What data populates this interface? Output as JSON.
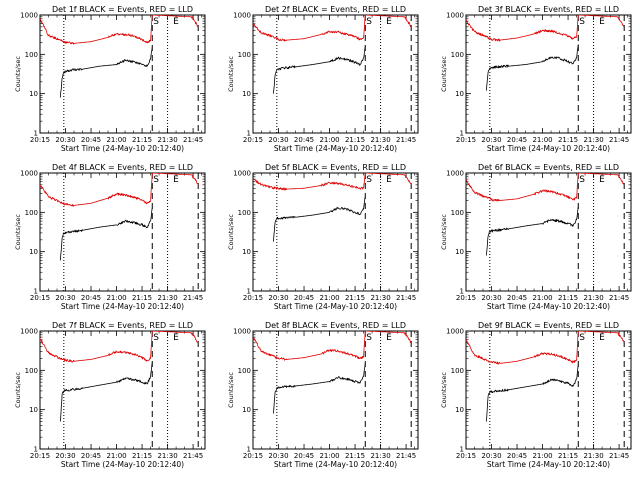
{
  "chart_data": [
    {
      "type": "line",
      "title": "Det 1f BLACK = Events, RED = LLD",
      "xlabel": "Start Time (24-May-10 20:12:40)",
      "ylabel": "Counts/sec",
      "yscale": "log",
      "ylim": [
        1,
        1000
      ],
      "xlim": [
        "20:15",
        "21:52"
      ],
      "x_ticks": [
        "20:15",
        "20:30",
        "20:45",
        "21:00",
        "21:15",
        "21:30",
        "21:45"
      ],
      "y_ticks": [
        "1",
        "10",
        "100",
        "1000"
      ],
      "markers": {
        "S": "21:21",
        "E": "21:35"
      },
      "dotted_lines": [
        "20:29",
        "21:30"
      ],
      "dashed_lines": [
        "21:21",
        "21:48"
      ],
      "series": [
        {
          "name": "BLACK",
          "color": "#000000",
          "x": [
            "20:27",
            "20:28",
            "20:29",
            "20:33",
            "20:40",
            "20:50",
            "21:00",
            "21:05",
            "21:10",
            "21:15",
            "21:18",
            "21:20",
            "21:21"
          ],
          "y": [
            8,
            25,
            35,
            40,
            42,
            50,
            55,
            70,
            65,
            55,
            50,
            75,
            150
          ]
        },
        {
          "name": "RED",
          "color": "#e00000",
          "x": [
            "20:15",
            "20:20",
            "20:27",
            "20:30",
            "20:35",
            "20:45",
            "20:55",
            "21:00",
            "21:05",
            "21:10",
            "21:15",
            "21:18",
            "21:20",
            "21:21",
            "21:44",
            "21:46",
            "21:48"
          ],
          "y": [
            800,
            300,
            230,
            200,
            190,
            210,
            270,
            330,
            320,
            290,
            240,
            200,
            220,
            1000,
            900,
            700,
            500
          ]
        }
      ]
    },
    {
      "type": "line",
      "title": "Det 2f BLACK = Events, RED = LLD",
      "xlabel": "Start Time (24-May-10 20:12:40)",
      "ylabel": "Counts/sec",
      "yscale": "log",
      "ylim": [
        1,
        1000
      ],
      "xlim": [
        "20:15",
        "21:52"
      ],
      "x_ticks": [
        "20:15",
        "20:30",
        "20:45",
        "21:00",
        "21:15",
        "21:30",
        "21:45"
      ],
      "y_ticks": [
        "1",
        "10",
        "100",
        "1000"
      ],
      "markers": {
        "S": "21:21",
        "E": "21:35"
      },
      "dotted_lines": [
        "20:29",
        "21:30"
      ],
      "dashed_lines": [
        "21:21",
        "21:48"
      ],
      "series": [
        {
          "name": "BLACK",
          "color": "#000000",
          "x": [
            "20:27",
            "20:28",
            "20:29",
            "20:33",
            "20:40",
            "20:50",
            "21:00",
            "21:05",
            "21:10",
            "21:15",
            "21:18",
            "21:20",
            "21:21"
          ],
          "y": [
            10,
            30,
            40,
            45,
            48,
            55,
            65,
            80,
            75,
            62,
            55,
            80,
            160
          ]
        },
        {
          "name": "RED",
          "color": "#e00000",
          "x": [
            "20:15",
            "20:20",
            "20:27",
            "20:30",
            "20:35",
            "20:45",
            "20:55",
            "21:00",
            "21:05",
            "21:10",
            "21:15",
            "21:18",
            "21:20",
            "21:21",
            "21:44",
            "21:46",
            "21:48"
          ],
          "y": [
            600,
            350,
            280,
            240,
            230,
            250,
            320,
            380,
            370,
            330,
            280,
            240,
            260,
            1000,
            900,
            700,
            500
          ]
        }
      ]
    },
    {
      "type": "line",
      "title": "Det 3f BLACK = Events, RED = LLD",
      "xlabel": "Start Time (24-May-10 20:12:40)",
      "ylabel": "Counts/sec",
      "yscale": "log",
      "ylim": [
        1,
        1000
      ],
      "xlim": [
        "20:15",
        "21:52"
      ],
      "x_ticks": [
        "20:15",
        "20:30",
        "20:45",
        "21:00",
        "21:15",
        "21:30",
        "21:45"
      ],
      "y_ticks": [
        "1",
        "10",
        "100",
        "1000"
      ],
      "markers": {
        "S": "21:21",
        "E": "21:35"
      },
      "dotted_lines": [
        "20:29",
        "21:30"
      ],
      "dashed_lines": [
        "21:21",
        "21:48"
      ],
      "series": [
        {
          "name": "BLACK",
          "color": "#000000",
          "x": [
            "20:27",
            "20:28",
            "20:29",
            "20:33",
            "20:40",
            "20:50",
            "21:00",
            "21:05",
            "21:10",
            "21:15",
            "21:18",
            "21:20",
            "21:21"
          ],
          "y": [
            12,
            35,
            45,
            48,
            50,
            55,
            65,
            85,
            80,
            65,
            58,
            80,
            180
          ]
        },
        {
          "name": "RED",
          "color": "#e00000",
          "x": [
            "20:15",
            "20:20",
            "20:27",
            "20:30",
            "20:35",
            "20:45",
            "20:55",
            "21:00",
            "21:05",
            "21:10",
            "21:15",
            "21:18",
            "21:20",
            "21:21",
            "21:44",
            "21:46",
            "21:48"
          ],
          "y": [
            700,
            380,
            280,
            240,
            230,
            260,
            330,
            400,
            390,
            350,
            290,
            250,
            280,
            1000,
            900,
            700,
            500
          ]
        }
      ]
    },
    {
      "type": "line",
      "title": "Det 4f BLACK = Events, RED = LLD",
      "xlabel": "Start Time (24-May-10 20:12:40)",
      "ylabel": "Counts/sec",
      "yscale": "log",
      "ylim": [
        1,
        1000
      ],
      "xlim": [
        "20:15",
        "21:52"
      ],
      "x_ticks": [
        "20:15",
        "20:30",
        "20:45",
        "21:00",
        "21:15",
        "21:30",
        "21:45"
      ],
      "y_ticks": [
        "1",
        "10",
        "100",
        "1000"
      ],
      "markers": {
        "S": "21:21",
        "E": "21:35"
      },
      "dotted_lines": [
        "20:29",
        "21:30"
      ],
      "dashed_lines": [
        "21:21",
        "21:48"
      ],
      "series": [
        {
          "name": "BLACK",
          "color": "#000000",
          "x": [
            "20:27",
            "20:28",
            "20:29",
            "20:33",
            "20:40",
            "20:50",
            "21:00",
            "21:05",
            "21:10",
            "21:15",
            "21:18",
            "21:20",
            "21:21"
          ],
          "y": [
            6,
            22,
            30,
            32,
            35,
            42,
            48,
            60,
            56,
            48,
            42,
            60,
            130
          ]
        },
        {
          "name": "RED",
          "color": "#e00000",
          "x": [
            "20:15",
            "20:20",
            "20:27",
            "20:30",
            "20:35",
            "20:45",
            "20:55",
            "21:00",
            "21:05",
            "21:10",
            "21:15",
            "21:18",
            "21:20",
            "21:21",
            "21:44",
            "21:46",
            "21:48"
          ],
          "y": [
            500,
            250,
            180,
            160,
            150,
            170,
            230,
            290,
            280,
            250,
            200,
            170,
            190,
            1000,
            900,
            700,
            500
          ]
        }
      ]
    },
    {
      "type": "line",
      "title": "Det 5f BLACK = Events, RED = LLD",
      "xlabel": "Start Time (24-May-10 20:12:40)",
      "ylabel": "Counts/sec",
      "yscale": "log",
      "ylim": [
        1,
        1000
      ],
      "xlim": [
        "20:15",
        "21:52"
      ],
      "x_ticks": [
        "20:15",
        "20:30",
        "20:45",
        "21:00",
        "21:15",
        "21:30",
        "21:45"
      ],
      "y_ticks": [
        "1",
        "10",
        "100",
        "1000"
      ],
      "markers": {
        "S": "21:21",
        "E": "21:35"
      },
      "dotted_lines": [
        "20:29",
        "21:30"
      ],
      "dashed_lines": [
        "21:21",
        "21:48"
      ],
      "series": [
        {
          "name": "BLACK",
          "color": "#000000",
          "x": [
            "20:27",
            "20:28",
            "20:29",
            "20:33",
            "20:40",
            "20:50",
            "21:00",
            "21:05",
            "21:10",
            "21:15",
            "21:18",
            "21:20",
            "21:21"
          ],
          "y": [
            18,
            55,
            70,
            72,
            75,
            85,
            100,
            130,
            120,
            100,
            90,
            120,
            250
          ]
        },
        {
          "name": "RED",
          "color": "#e00000",
          "x": [
            "20:15",
            "20:20",
            "20:27",
            "20:30",
            "20:35",
            "20:45",
            "20:55",
            "21:00",
            "21:05",
            "21:10",
            "21:15",
            "21:18",
            "21:20",
            "21:21",
            "21:44",
            "21:46",
            "21:48"
          ],
          "y": [
            700,
            500,
            420,
            400,
            390,
            410,
            480,
            560,
            550,
            500,
            440,
            400,
            420,
            1000,
            900,
            700,
            500
          ]
        }
      ]
    },
    {
      "type": "line",
      "title": "Det 6f BLACK = Events, RED = LLD",
      "xlabel": "Start Time (24-May-10 20:12:40)",
      "ylabel": "Counts/sec",
      "yscale": "log",
      "ylim": [
        1,
        1000
      ],
      "xlim": [
        "20:15",
        "21:52"
      ],
      "x_ticks": [
        "20:15",
        "20:30",
        "20:45",
        "21:00",
        "21:15",
        "21:30",
        "21:45"
      ],
      "y_ticks": [
        "1",
        "10",
        "100",
        "1000"
      ],
      "markers": {
        "S": "21:21",
        "E": "21:35"
      },
      "dotted_lines": [
        "20:29",
        "21:30"
      ],
      "dashed_lines": [
        "21:21",
        "21:48"
      ],
      "series": [
        {
          "name": "BLACK",
          "color": "#000000",
          "x": [
            "20:27",
            "20:28",
            "20:29",
            "20:33",
            "20:40",
            "20:50",
            "21:00",
            "21:05",
            "21:10",
            "21:15",
            "21:18",
            "21:20",
            "21:21"
          ],
          "y": [
            8,
            25,
            33,
            35,
            38,
            45,
            52,
            65,
            60,
            52,
            46,
            65,
            140
          ]
        },
        {
          "name": "RED",
          "color": "#e00000",
          "x": [
            "20:15",
            "20:20",
            "20:27",
            "20:30",
            "20:35",
            "20:45",
            "20:55",
            "21:00",
            "21:05",
            "21:10",
            "21:15",
            "21:18",
            "21:20",
            "21:21",
            "21:44",
            "21:46",
            "21:48"
          ],
          "y": [
            650,
            320,
            240,
            210,
            200,
            220,
            290,
            350,
            340,
            300,
            250,
            210,
            230,
            1000,
            900,
            700,
            500
          ]
        }
      ]
    },
    {
      "type": "line",
      "title": "Det 7f BLACK = Events, RED = LLD",
      "xlabel": "Start Time (24-May-10 20:12:40)",
      "ylabel": "Counts/sec",
      "yscale": "log",
      "ylim": [
        1,
        1000
      ],
      "xlim": [
        "20:15",
        "21:52"
      ],
      "x_ticks": [
        "20:15",
        "20:30",
        "20:45",
        "21:00",
        "21:15",
        "21:30",
        "21:45"
      ],
      "y_ticks": [
        "1",
        "10",
        "100",
        "1000"
      ],
      "markers": {
        "S": "21:21",
        "E": "21:35"
      },
      "dotted_lines": [
        "20:29",
        "21:30"
      ],
      "dashed_lines": [
        "21:21",
        "21:48"
      ],
      "series": [
        {
          "name": "BLACK",
          "color": "#000000",
          "x": [
            "20:27",
            "20:28",
            "20:29",
            "20:33",
            "20:40",
            "20:50",
            "21:00",
            "21:05",
            "21:10",
            "21:15",
            "21:18",
            "21:20",
            "21:21"
          ],
          "y": [
            5,
            25,
            30,
            32,
            35,
            42,
            50,
            62,
            58,
            50,
            45,
            70,
            160
          ]
        },
        {
          "name": "RED",
          "color": "#e00000",
          "x": [
            "20:15",
            "20:20",
            "20:27",
            "20:30",
            "20:35",
            "20:45",
            "20:55",
            "21:00",
            "21:05",
            "21:10",
            "21:15",
            "21:18",
            "21:20",
            "21:21",
            "21:44",
            "21:46",
            "21:48"
          ],
          "y": [
            650,
            280,
            200,
            180,
            170,
            190,
            240,
            300,
            290,
            260,
            210,
            180,
            200,
            1000,
            900,
            700,
            500
          ]
        }
      ]
    },
    {
      "type": "line",
      "title": "Det 8f BLACK = Events, RED = LLD",
      "xlabel": "Start Time (24-May-10 20:12:40)",
      "ylabel": "Counts/sec",
      "yscale": "log",
      "ylim": [
        1,
        1000
      ],
      "xlim": [
        "20:15",
        "21:52"
      ],
      "x_ticks": [
        "20:15",
        "20:30",
        "20:45",
        "21:00",
        "21:15",
        "21:30",
        "21:45"
      ],
      "y_ticks": [
        "1",
        "10",
        "100",
        "1000"
      ],
      "markers": {
        "S": "21:21",
        "E": "21:35"
      },
      "dotted_lines": [
        "20:29",
        "21:30"
      ],
      "dashed_lines": [
        "21:21",
        "21:48"
      ],
      "series": [
        {
          "name": "BLACK",
          "color": "#000000",
          "x": [
            "20:27",
            "20:28",
            "20:29",
            "20:33",
            "20:40",
            "20:50",
            "21:00",
            "21:05",
            "21:10",
            "21:15",
            "21:18",
            "21:20",
            "21:21"
          ],
          "y": [
            8,
            28,
            35,
            38,
            40,
            45,
            52,
            65,
            60,
            52,
            48,
            70,
            150
          ]
        },
        {
          "name": "RED",
          "color": "#e00000",
          "x": [
            "20:15",
            "20:20",
            "20:27",
            "20:30",
            "20:35",
            "20:45",
            "20:55",
            "21:00",
            "21:05",
            "21:10",
            "21:15",
            "21:18",
            "21:20",
            "21:21",
            "21:44",
            "21:46",
            "21:48"
          ],
          "y": [
            700,
            300,
            230,
            200,
            190,
            210,
            260,
            320,
            310,
            270,
            230,
            200,
            220,
            1000,
            900,
            700,
            500
          ]
        }
      ]
    },
    {
      "type": "line",
      "title": "Det 9f BLACK = Events, RED = LLD",
      "xlabel": "Start Time (24-May-10 20:12:40)",
      "ylabel": "Counts/sec",
      "yscale": "log",
      "ylim": [
        1,
        1000
      ],
      "xlim": [
        "20:15",
        "21:52"
      ],
      "x_ticks": [
        "20:15",
        "20:30",
        "20:45",
        "21:00",
        "21:15",
        "21:30",
        "21:45"
      ],
      "y_ticks": [
        "1",
        "10",
        "100",
        "1000"
      ],
      "markers": {
        "S": "21:21",
        "E": "21:35"
      },
      "dotted_lines": [
        "20:29",
        "21:30"
      ],
      "dashed_lines": [
        "21:21",
        "21:48"
      ],
      "series": [
        {
          "name": "BLACK",
          "color": "#000000",
          "x": [
            "20:27",
            "20:28",
            "20:29",
            "20:33",
            "20:40",
            "20:50",
            "21:00",
            "21:05",
            "21:10",
            "21:15",
            "21:18",
            "21:20",
            "21:21"
          ],
          "y": [
            5,
            22,
            28,
            30,
            32,
            38,
            45,
            58,
            54,
            46,
            40,
            60,
            140
          ]
        },
        {
          "name": "RED",
          "color": "#e00000",
          "x": [
            "20:15",
            "20:20",
            "20:27",
            "20:30",
            "20:35",
            "20:45",
            "20:55",
            "21:00",
            "21:05",
            "21:10",
            "21:15",
            "21:18",
            "21:20",
            "21:21",
            "21:44",
            "21:46",
            "21:48"
          ],
          "y": [
            600,
            250,
            180,
            160,
            150,
            170,
            220,
            270,
            260,
            230,
            190,
            160,
            180,
            1000,
            900,
            700,
            500
          ]
        }
      ]
    }
  ]
}
